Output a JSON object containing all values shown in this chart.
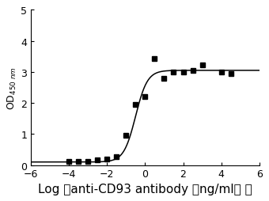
{
  "title": "",
  "xlabel": "Log （anti-CD93 antibody （ng/ml） ）",
  "ylabel": "OD$_{450\\ nm}$",
  "xlim": [
    -6,
    6
  ],
  "ylim": [
    0,
    5
  ],
  "xticks": [
    -6,
    -4,
    -2,
    0,
    2,
    4,
    6
  ],
  "yticks": [
    0,
    1,
    2,
    3,
    4,
    5
  ],
  "scatter_x": [
    -4.0,
    -3.5,
    -3.0,
    -2.5,
    -2.0,
    -1.5,
    -1.0,
    -0.5,
    0.0,
    0.5,
    1.0,
    1.5,
    2.0,
    2.5,
    3.0,
    4.0,
    4.5
  ],
  "scatter_y": [
    0.12,
    0.13,
    0.13,
    0.17,
    0.2,
    0.28,
    0.95,
    1.95,
    2.2,
    3.42,
    2.78,
    3.0,
    3.0,
    3.05,
    3.22,
    3.0,
    2.95
  ],
  "point_color": "#000000",
  "line_color": "#000000",
  "bg_color": "#ffffff",
  "marker_size": 4,
  "xlabel_fontsize": 11,
  "ylabel_fontsize": 9,
  "tick_fontsize": 9,
  "sigmoid_p0": [
    0.1,
    3.05,
    -0.5,
    1.4
  ]
}
